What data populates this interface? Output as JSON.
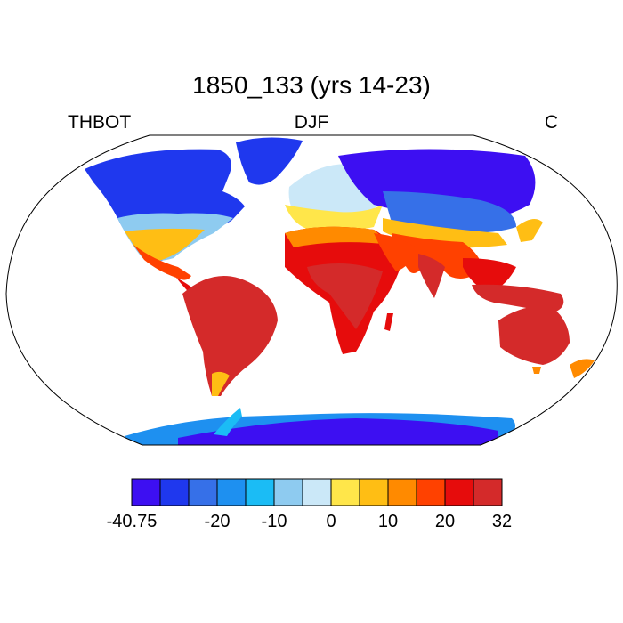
{
  "title": "1850_133 (yrs 14-23)",
  "label_left": "THBOT",
  "label_center": "DJF",
  "label_right": "C",
  "colorbar": {
    "colors": [
      "#3d0ff2",
      "#1f38ee",
      "#3670e8",
      "#1e90f0",
      "#1bbcf5",
      "#8ecbf0",
      "#cbe8f8",
      "#ffe64a",
      "#ffbe14",
      "#ff8a00",
      "#ff4100",
      "#e60c0c",
      "#d42a2a"
    ],
    "ticks": [
      {
        "label": "-40.75",
        "index": 0
      },
      {
        "label": "-20",
        "index": 3
      },
      {
        "label": "-10",
        "index": 5
      },
      {
        "label": "0",
        "index": 7
      },
      {
        "label": "10",
        "index": 9
      },
      {
        "label": "20",
        "index": 11
      },
      {
        "label": "32",
        "index": 13
      }
    ]
  }
}
